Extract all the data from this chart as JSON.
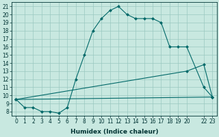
{
  "xlabel": "Humidex (Indice chaleur)",
  "bg_color": "#c8e8e0",
  "grid_color": "#9ac8c0",
  "line_color": "#006868",
  "xlim": [
    -0.5,
    23.5
  ],
  "ylim": [
    7.5,
    21.5
  ],
  "yticks": [
    8,
    9,
    10,
    11,
    12,
    13,
    14,
    15,
    16,
    17,
    18,
    19,
    20,
    21
  ],
  "xtick_positions": [
    0,
    1,
    2,
    3,
    4,
    5,
    6,
    7,
    8,
    9,
    10,
    11,
    12,
    13,
    14,
    15,
    16,
    17,
    18,
    19,
    20,
    22,
    23
  ],
  "xtick_labels": [
    "0",
    "1",
    "2",
    "3",
    "4",
    "5",
    "6",
    "7",
    "8",
    "9",
    "10",
    "11",
    "12",
    "13",
    "14",
    "15",
    "16",
    "17",
    "18",
    "19",
    "20",
    "22",
    "23"
  ],
  "curve1_x": [
    0,
    1,
    2,
    3,
    4,
    5,
    6,
    7,
    8,
    9,
    10,
    11,
    12,
    13,
    14,
    15,
    16,
    17,
    18,
    19,
    20,
    22,
    23
  ],
  "curve1_y": [
    9.5,
    8.5,
    8.5,
    8.0,
    8.0,
    7.8,
    8.5,
    12.0,
    15.0,
    18.0,
    19.5,
    20.5,
    21.0,
    20.0,
    19.5,
    19.5,
    19.5,
    19.0,
    16.0,
    16.0,
    16.0,
    11.0,
    9.8
  ],
  "curve2_x": [
    0,
    20,
    22,
    23
  ],
  "curve2_y": [
    9.5,
    13.0,
    13.8,
    9.8
  ],
  "curve3_x": [
    0,
    23
  ],
  "curve3_y": [
    9.5,
    9.8
  ],
  "marker_size": 2.5,
  "font_size_label": 6.5,
  "font_size_tick": 5.5
}
